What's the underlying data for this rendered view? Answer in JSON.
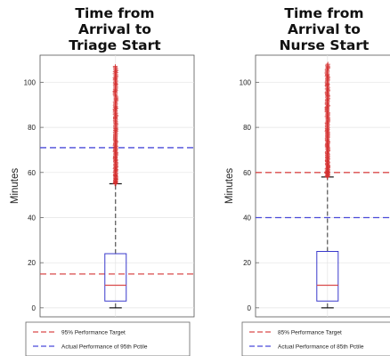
{
  "chart_data": [
    {
      "type": "box",
      "title": [
        "Time from",
        "Arrival to",
        "Triage Start"
      ],
      "ylabel": "Minutes",
      "ylim": [
        -4,
        112
      ],
      "yticks": [
        0,
        20,
        40,
        60,
        80,
        100
      ],
      "box": {
        "min": 0,
        "q1": 3,
        "median": 10,
        "q3": 24,
        "whisker_high": 55,
        "outliers_range": [
          55,
          107
        ]
      },
      "reference_lines": [
        {
          "label": "95% Performance Target",
          "value": 15,
          "color": "#d94a4a"
        },
        {
          "label": "Actual Performance of 95th Pctile",
          "value": 71,
          "color": "#4a4ad9"
        }
      ],
      "grid": true,
      "legend_position": "bottom"
    },
    {
      "type": "box",
      "title": [
        "Time from",
        "Arrival to",
        "Nurse Start"
      ],
      "ylabel": "Minutes",
      "ylim": [
        -4,
        112
      ],
      "yticks": [
        0,
        20,
        40,
        60,
        80,
        100
      ],
      "box": {
        "min": 0,
        "q1": 3,
        "median": 10,
        "q3": 25,
        "whisker_high": 58,
        "outliers_range": [
          58,
          108
        ]
      },
      "reference_lines": [
        {
          "label": "85% Performance Target",
          "value": 60,
          "color": "#d94a4a"
        },
        {
          "label": "Actual Performance of 85th Pctile",
          "value": 40,
          "color": "#4a4ad9"
        }
      ],
      "grid": true,
      "legend_position": "bottom"
    }
  ]
}
